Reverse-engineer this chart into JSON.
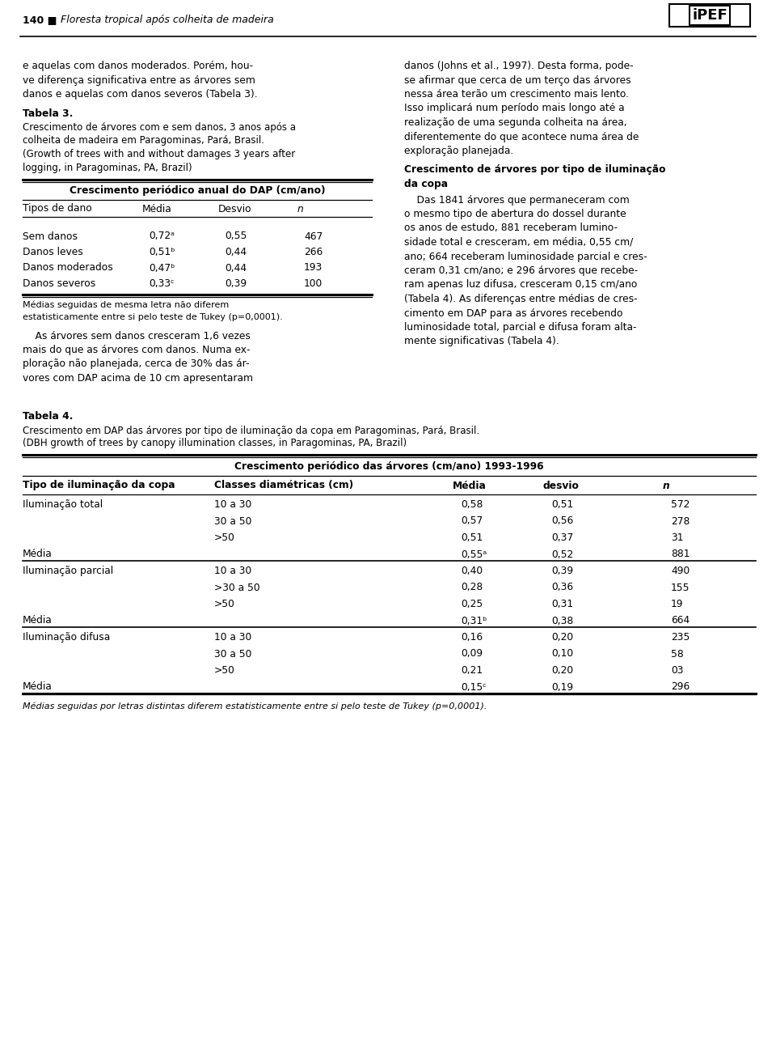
{
  "bg_color": "#ffffff",
  "page_width": 9.6,
  "page_height": 13.0,
  "left_col_paragraphs": [
    "e aquelas com danos moderados. Porém, hou-",
    "ve diferença significativa entre as árvores sem",
    "danos e aquelas com danos severos (Tabela 3)."
  ],
  "right_col_paragraphs": [
    "danos (Johns et al., 1997). Desta forma, pode-",
    "se afirmar que cerca de um terço das árvores",
    "nessa área terão um crescimento mais lento.",
    "Isso implicará num período mais longo até a",
    "realização de uma segunda colheita na área,",
    "diferentemente do que acontece numa área de",
    "exploração planejada."
  ],
  "tabela3_label": "Tabela 3.",
  "tabela3_caption1": "Crescimento de árvores com e sem danos, 3 anos após a",
  "tabela3_caption2": "colheita de madeira em Paragominas, Pará, Brasil.",
  "tabela3_caption3": "(Growth of trees with and without damages 3 years after",
  "tabela3_caption4": "logging, in Paragominas, PA, Brazil)",
  "tabela3_title": "Crescimento periódico anual do DAP (cm/ano)",
  "tabela3_col_headers": [
    "Tipos de dano",
    "Média",
    "Desvio",
    "n"
  ],
  "tabela3_rows": [
    [
      "Sem danos",
      "0,72ᵃ",
      "0,55",
      "467"
    ],
    [
      "Danos leves",
      "0,51ᵇ",
      "0,44",
      "266"
    ],
    [
      "Danos moderados",
      "0,47ᵇ",
      "0,44",
      "193"
    ],
    [
      "Danos severos",
      "0,33ᶜ",
      "0,39",
      "100"
    ]
  ],
  "tabela3_footnote1": "Médias seguidas de mesma letra não diferem",
  "tabela3_footnote2": "estatisticamente entre si pelo teste de Tukey (p=0,0001).",
  "left_para2_lines": [
    "    As árvores sem danos cresceram 1,6 vezes",
    "mais do que as árvores com danos. Numa ex-",
    "ploração não planejada, cerca de 30% das ár-",
    "vores com DAP acima de 10 cm apresentaram"
  ],
  "right_section_title1": "Crescimento de árvores por tipo de iluminação",
  "right_section_title2": "da copa",
  "right_para2_lines": [
    "    Das 1841 árvores que permaneceram com",
    "o mesmo tipo de abertura do dossel durante",
    "os anos de estudo, 881 receberam lumino-",
    "sidade total e cresceram, em média, 0,55 cm/",
    "ano; 664 receberam luminosidade parcial e cres-",
    "ceram 0,31 cm/ano; e 296 árvores que recebe-",
    "ram apenas luz difusa, cresceram 0,15 cm/ano",
    "(Tabela 4). As diferenças entre médias de cres-",
    "cimento em DAP para as árvores recebendo",
    "luminosidade total, parcial e difusa foram alta-",
    "mente significativas (Tabela 4)."
  ],
  "tabela4_label": "Tabela 4.",
  "tabela4_caption1": "Crescimento em DAP das árvores por tipo de iluminação da copa em Paragominas, Pará, Brasil.",
  "tabela4_caption2": "(DBH growth of trees by canopy illumination classes, in Paragominas, PA, Brazil)",
  "tabela4_main_title": "Crescimento periódico das árvores (cm/ano) 1993-1996",
  "tabela4_col_headers": [
    "Tipo de iluminação da copa",
    "Classes diamétricas (cm)",
    "Média",
    "desvio",
    "n"
  ],
  "tabela4_rows": [
    [
      "Iluminação total",
      "10 a 30",
      "0,58",
      "0,51",
      "572"
    ],
    [
      "",
      "30 a 50",
      "0,57",
      "0,56",
      "278"
    ],
    [
      "",
      ">50",
      "0,51",
      "0,37",
      "31"
    ],
    [
      "Média",
      "",
      "0,55ᵃ",
      "0,52",
      "881"
    ],
    [
      "Iluminação parcial",
      "10 a 30",
      "0,40",
      "0,39",
      "490"
    ],
    [
      "",
      ">30 a 50",
      "0,28",
      "0,36",
      "155"
    ],
    [
      "",
      ">50",
      "0,25",
      "0,31",
      "19"
    ],
    [
      "Média",
      "",
      "0,31ᵇ",
      "0,38",
      "664"
    ],
    [
      "Iluminação difusa",
      "10 a 30",
      "0,16",
      "0,20",
      "235"
    ],
    [
      "",
      "30 a 50",
      "0,09",
      "0,10",
      "58"
    ],
    [
      "",
      ">50",
      "0,21",
      "0,20",
      "03"
    ],
    [
      "Média",
      "",
      "0,15ᶜ",
      "0,19",
      "296"
    ]
  ],
  "tabela4_footnote": "Médias seguidas por letras distintas diferem estatisticamente entre si pelo teste de Tukey (p=0,0001)."
}
